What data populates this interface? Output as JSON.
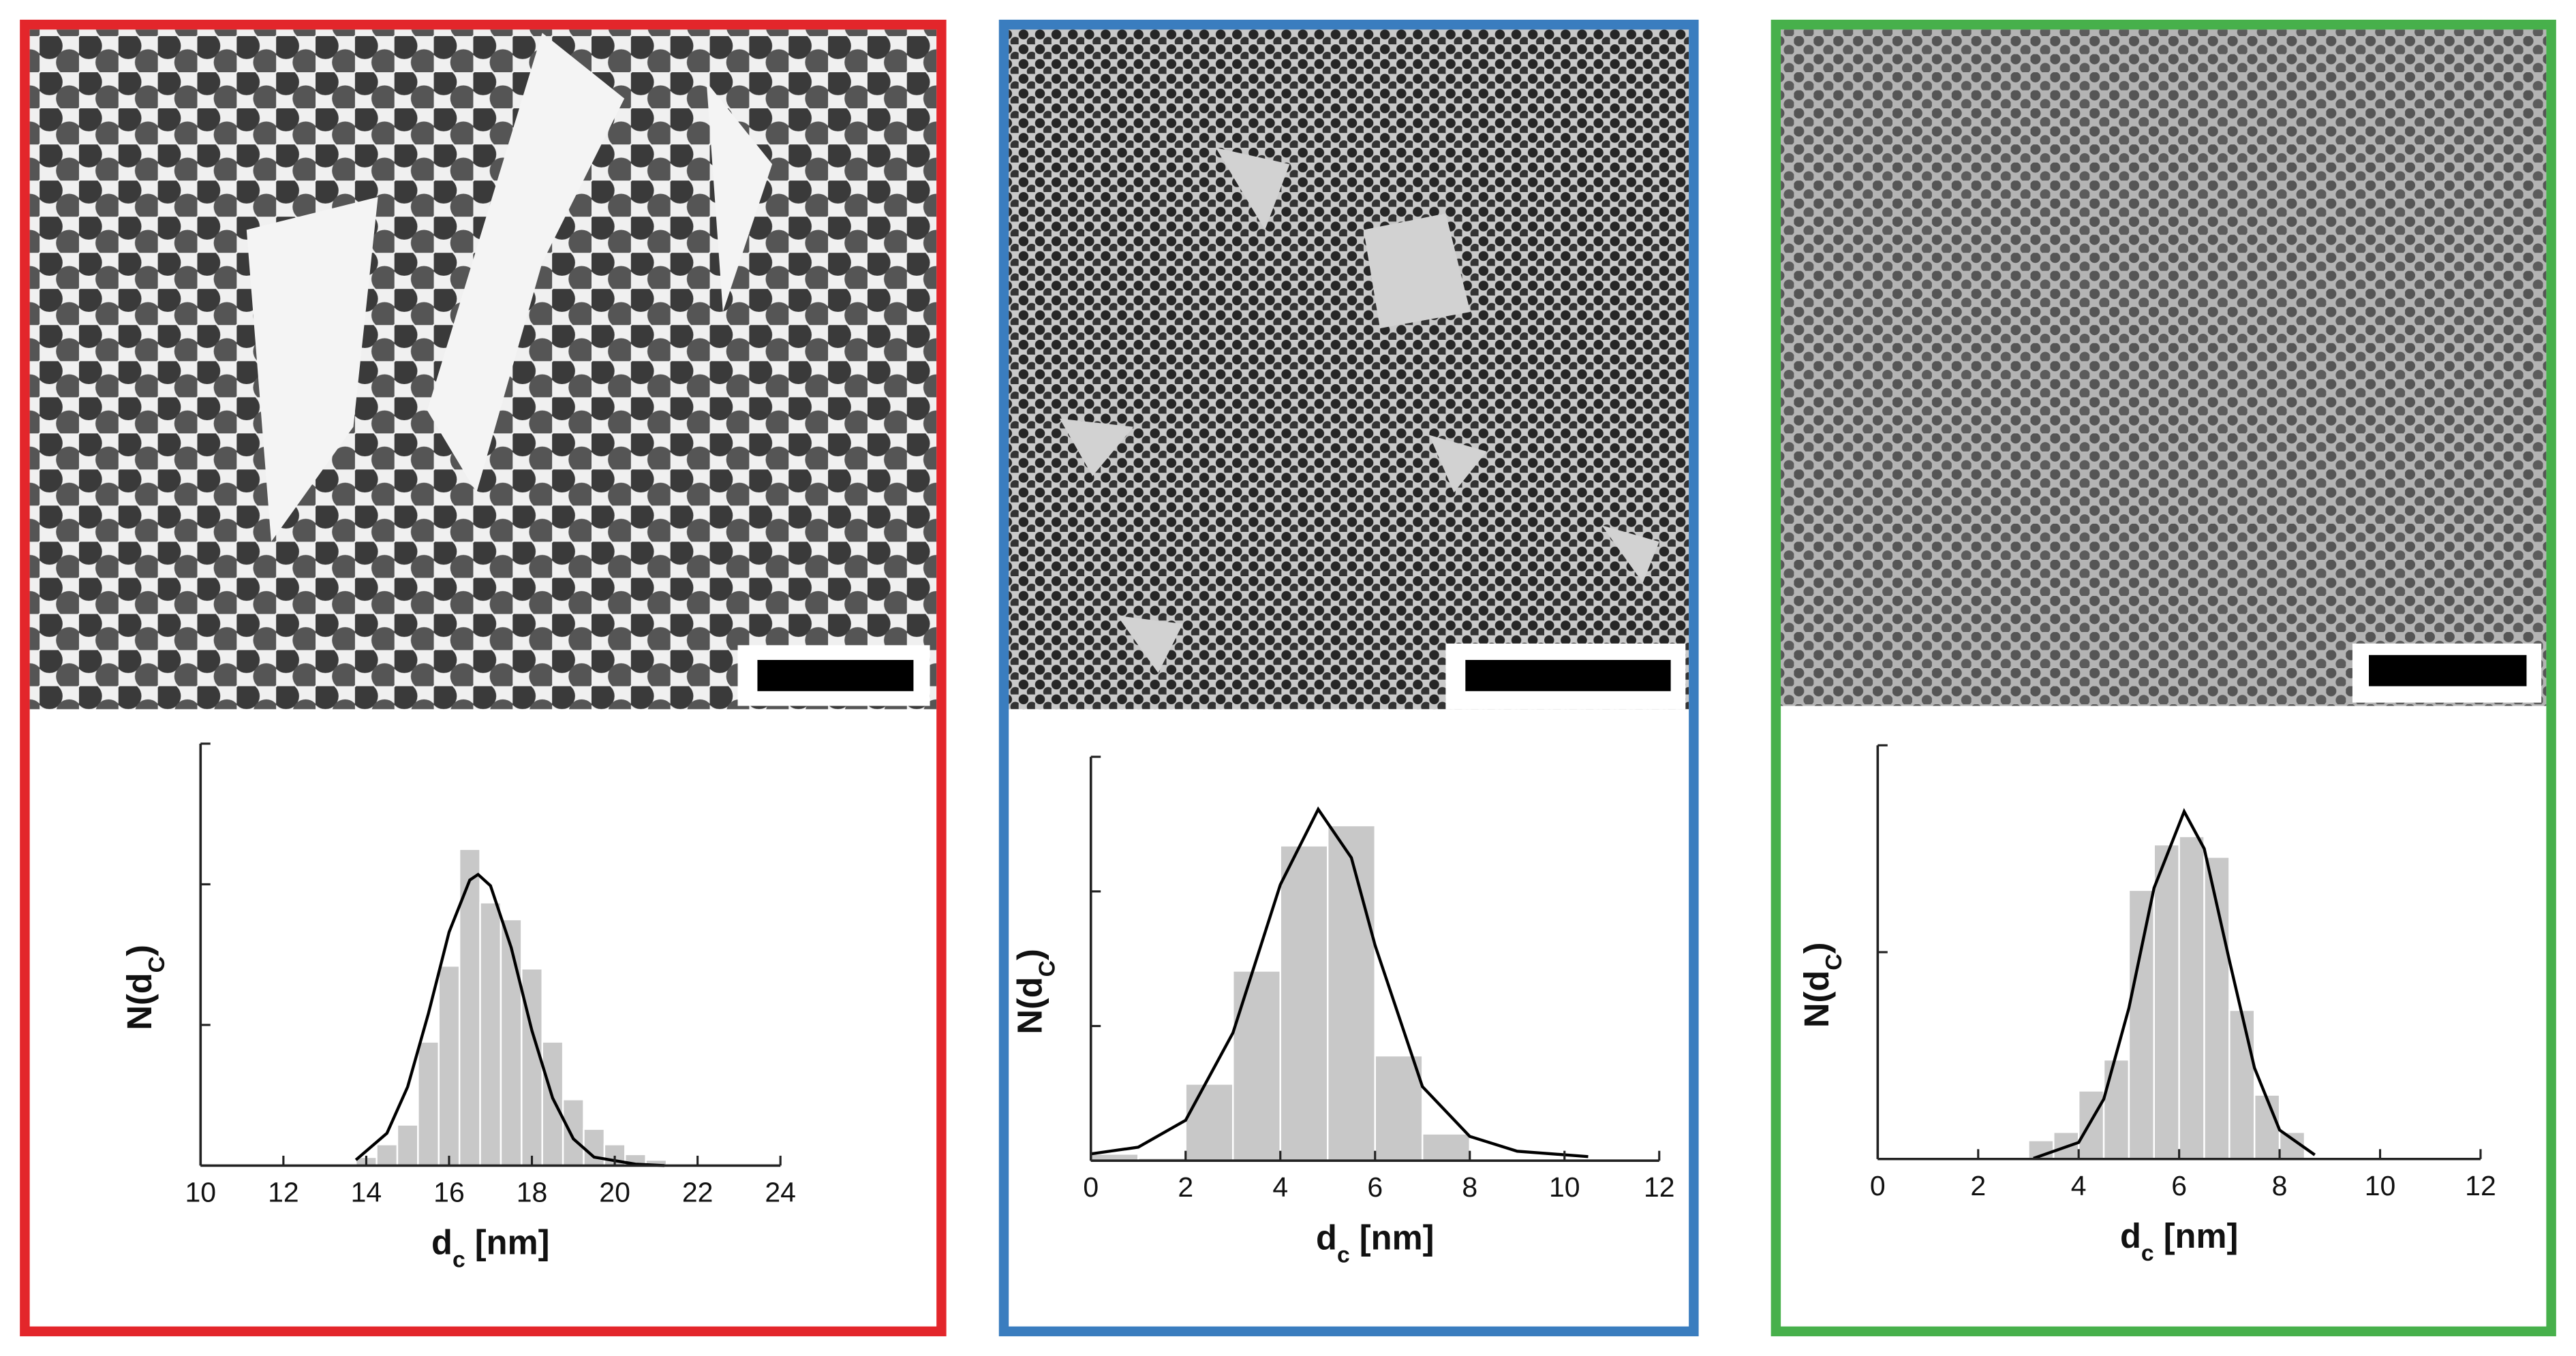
{
  "chart_data": [
    {
      "type": "histogram",
      "frame_color": "#e3262b",
      "color": "#c8c8c8",
      "bins": [
        13.75,
        14.25,
        14.75,
        15.25,
        15.75,
        16.25,
        16.75,
        17.25,
        17.75,
        18.25,
        18.75,
        19.25,
        19.75,
        20.25,
        20.75,
        21.25
      ],
      "values": [
        0.06,
        0.15,
        0.29,
        0.88,
        1.42,
        2.25,
        1.87,
        1.75,
        1.4,
        0.88,
        0.47,
        0.26,
        0.15,
        0.08,
        0.04
      ],
      "fit": {
        "color": "#000000",
        "x": [
          13.75,
          14.5,
          15,
          15.5,
          16,
          16.5,
          16.7,
          17,
          17.5,
          18,
          18.5,
          19,
          19.5,
          20.5,
          21.2
        ],
        "values": [
          0.04,
          0.23,
          0.56,
          1.08,
          1.66,
          2.03,
          2.07,
          1.99,
          1.55,
          0.96,
          0.48,
          0.19,
          0.06,
          0.01,
          0
        ]
      },
      "xlim": [
        10,
        24
      ],
      "xticks": [
        10,
        12,
        14,
        16,
        18,
        20,
        22,
        24
      ],
      "ylim": [
        0,
        3
      ],
      "yticks": [
        0,
        1,
        2,
        3
      ],
      "x_label": [
        "d",
        "c",
        " [nm]"
      ],
      "y_label": [
        "N(d",
        "C",
        ")"
      ]
    },
    {
      "type": "histogram",
      "frame_color": "#3a7dbf",
      "color": "#c8c8c8",
      "bins": [
        0,
        1,
        2,
        3,
        4,
        5,
        6,
        7,
        8
      ],
      "values": [
        0.05,
        0.02,
        0.57,
        1.41,
        2.34,
        2.49,
        0.78,
        0.2
      ],
      "fit": {
        "color": "#000000",
        "x": [
          0,
          1,
          2,
          3,
          4,
          4.8,
          5.5,
          6,
          7,
          8,
          9,
          10.5
        ],
        "values": [
          0.05,
          0.1,
          0.3,
          0.95,
          2.05,
          2.61,
          2.25,
          1.6,
          0.55,
          0.18,
          0.07,
          0.03
        ]
      },
      "xlim": [
        0,
        12
      ],
      "xticks": [
        0,
        2,
        4,
        6,
        8,
        10,
        12
      ],
      "ylim": [
        0,
        3
      ],
      "yticks": [
        0,
        1,
        2,
        3
      ],
      "x_label": [
        "d",
        "c",
        " [nm]"
      ],
      "y_label": [
        "N(d",
        "C",
        ")"
      ]
    },
    {
      "type": "histogram",
      "frame_color": "#47b04b",
      "color": "#c8c8c8",
      "bins": [
        3,
        3.5,
        4,
        4.5,
        5,
        5.5,
        6,
        6.5,
        7,
        7.5,
        8,
        8.5
      ],
      "values": [
        0.09,
        0.13,
        0.33,
        0.48,
        1.3,
        1.52,
        1.56,
        1.46,
        0.72,
        0.31,
        0.13
      ],
      "fit": {
        "color": "#000000",
        "x": [
          3.1,
          4,
          4.5,
          5,
          5.5,
          6.1,
          6.5,
          7,
          7.5,
          8,
          8.7
        ],
        "values": [
          0.003,
          0.08,
          0.29,
          0.73,
          1.31,
          1.68,
          1.5,
          0.96,
          0.44,
          0.14,
          0.02
        ]
      },
      "xlim": [
        0,
        12
      ],
      "xticks": [
        0,
        2,
        4,
        6,
        8,
        10,
        12
      ],
      "ylim": [
        0,
        2
      ],
      "yticks": [
        0,
        1,
        2
      ],
      "x_label": [
        "d",
        "c",
        " [nm]"
      ],
      "y_label": [
        "N(d",
        "C",
        ")"
      ]
    }
  ]
}
